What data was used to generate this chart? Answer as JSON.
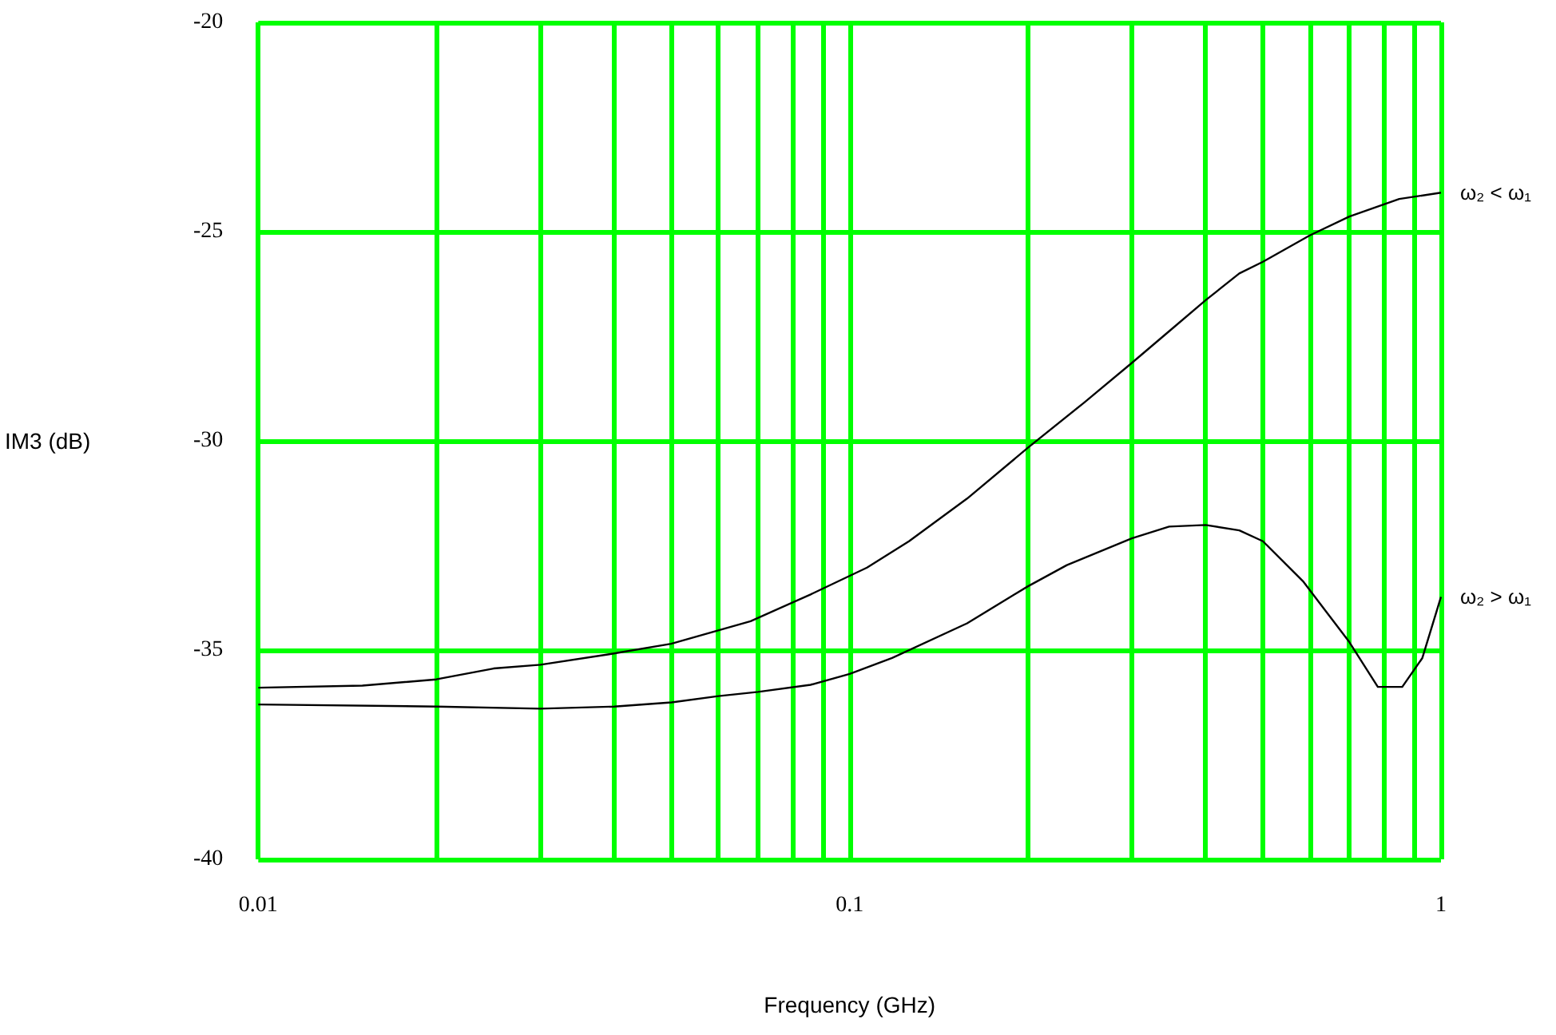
{
  "chart_data": {
    "type": "line",
    "xlabel": "Frequency (GHz)",
    "ylabel": "IM3 (dB)",
    "xlim": [
      0.01,
      1
    ],
    "xticks": [
      0.01,
      0.1,
      1
    ],
    "ylim": [
      -40,
      -20
    ],
    "yticks": [
      -40,
      -35,
      -30,
      -25,
      -20
    ],
    "log": "x",
    "grid": true,
    "legend": false,
    "marker": "none",
    "line_style": "solid",
    "series": [
      {
        "name": "ω₂ < ω₁",
        "color": "#000000",
        "x": [
          0.01,
          0.015,
          0.02,
          0.025,
          0.03,
          0.0392,
          0.0499,
          0.068,
          0.0859,
          0.107,
          0.126,
          0.158,
          0.2,
          0.249,
          0.3,
          0.347,
          0.4,
          0.456,
          0.5,
          0.6,
          0.7,
          0.85,
          1
        ],
        "values": [
          -35.9,
          -35.85,
          -35.7,
          -35.44,
          -35.35,
          -35.1,
          -34.85,
          -34.31,
          -33.67,
          -33.03,
          -32.4,
          -31.38,
          -30.17,
          -29.09,
          -28.14,
          -27.38,
          -26.64,
          -26.0,
          -25.72,
          -25.09,
          -24.64,
          -24.22,
          -24.07
        ]
      },
      {
        "name": "ω₂ > ω₁",
        "color": "#000000",
        "x": [
          0.01,
          0.02,
          0.03,
          0.04,
          0.05,
          0.06,
          0.07,
          0.0859,
          0.1,
          0.118,
          0.158,
          0.2,
          0.233,
          0.3,
          0.347,
          0.4,
          0.456,
          0.5,
          0.584,
          0.7,
          0.782,
          0.86,
          0.93,
          1
        ],
        "values": [
          -36.3,
          -36.35,
          -36.4,
          -36.35,
          -36.25,
          -36.1,
          -36.0,
          -35.83,
          -35.57,
          -35.19,
          -34.36,
          -33.48,
          -32.97,
          -32.33,
          -32.05,
          -32.01,
          -32.14,
          -32.4,
          -33.35,
          -34.81,
          -35.88,
          -35.88,
          -35.19,
          -33.73
        ]
      }
    ]
  }
}
